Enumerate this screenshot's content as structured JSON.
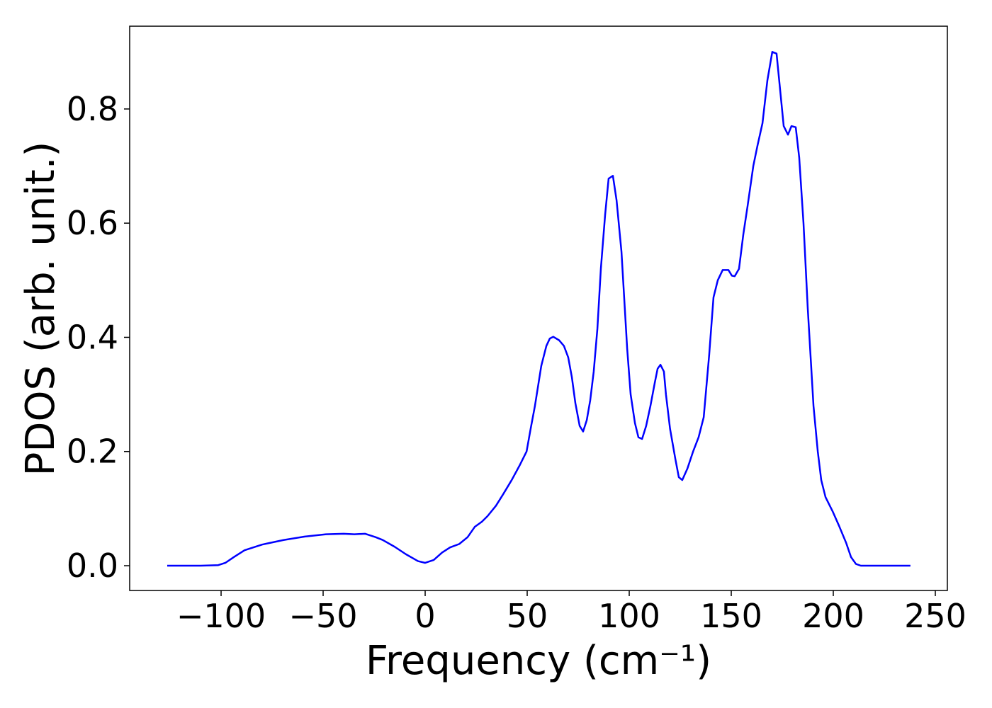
{
  "chart_data": {
    "type": "line",
    "xlabel": "Frequency (cm⁻¹)",
    "ylabel": "PDOS (arb. unit.)",
    "series": [
      {
        "color": "#0000ff",
        "x": [
          -126.4,
          -110,
          -101.4,
          -97.9,
          -93.8,
          -88.5,
          -79.9,
          -69.4,
          -59,
          -48.6,
          -39.9,
          -34.7,
          -29.5,
          -24.3,
          -20.8,
          -14.9,
          -9.4,
          -3.5,
          0,
          4.2,
          8.3,
          12.2,
          16.7,
          20.8,
          24.3,
          27.8,
          30.6,
          34.7,
          38.2,
          42.4,
          46.2,
          49.7,
          51.7,
          53.8,
          56.9,
          59.4,
          61.1,
          62.8,
          65.6,
          68,
          70.1,
          71.9,
          73.6,
          75.7,
          77.4,
          79.2,
          80.9,
          82.6,
          84.4,
          86.1,
          88.2,
          89.9,
          92,
          93.8,
          96.2,
          99,
          100.7,
          102.8,
          104.5,
          106.3,
          108.3,
          110.4,
          112.5,
          113.9,
          115.3,
          117,
          118,
          120,
          122.6,
          124.3,
          126,
          128.5,
          131.3,
          134,
          136.5,
          139.2,
          141.3,
          143.4,
          145.8,
          148.6,
          150.3,
          151.7,
          153.8,
          155.9,
          158,
          160.8,
          162.8,
          165.3,
          167.7,
          170.1,
          172.2,
          175.7,
          177.8,
          179.5,
          181.6,
          183.3,
          185.4,
          187.5,
          190.3,
          192.4,
          194.1,
          196.2,
          199.7,
          202.8,
          206.3,
          208.7,
          211.1,
          213.5,
          237.8
        ],
        "values": [
          0,
          0,
          0.001,
          0.005,
          0.015,
          0.027,
          0.037,
          0.045,
          0.051,
          0.055,
          0.056,
          0.055,
          0.056,
          0.05,
          0.045,
          0.033,
          0.02,
          0.008,
          0.005,
          0.01,
          0.023,
          0.032,
          0.038,
          0.05,
          0.068,
          0.077,
          0.087,
          0.105,
          0.125,
          0.15,
          0.175,
          0.2,
          0.24,
          0.28,
          0.35,
          0.385,
          0.398,
          0.401,
          0.395,
          0.385,
          0.365,
          0.33,
          0.285,
          0.245,
          0.235,
          0.255,
          0.29,
          0.34,
          0.415,
          0.52,
          0.615,
          0.678,
          0.683,
          0.64,
          0.55,
          0.38,
          0.3,
          0.25,
          0.225,
          0.222,
          0.245,
          0.28,
          0.32,
          0.345,
          0.352,
          0.34,
          0.3,
          0.24,
          0.187,
          0.155,
          0.15,
          0.17,
          0.2,
          0.225,
          0.26,
          0.37,
          0.47,
          0.5,
          0.518,
          0.518,
          0.508,
          0.507,
          0.52,
          0.58,
          0.63,
          0.7,
          0.735,
          0.775,
          0.85,
          0.9,
          0.897,
          0.77,
          0.755,
          0.77,
          0.768,
          0.715,
          0.6,
          0.45,
          0.28,
          0.2,
          0.15,
          0.12,
          0.095,
          0.07,
          0.04,
          0.015,
          0.003,
          0,
          0
        ]
      }
    ],
    "xlim": [
      -144.8,
      255.9
    ],
    "ylim": [
      -0.0434,
      0.945
    ],
    "xticks": [
      {
        "value": -100,
        "label": "−100"
      },
      {
        "value": -50,
        "label": "−50"
      },
      0,
      50,
      100,
      150,
      200,
      250
    ],
    "yticks": [
      {
        "value": 0,
        "label": "0.0"
      },
      0.2,
      0.4,
      0.6,
      0.8
    ]
  }
}
